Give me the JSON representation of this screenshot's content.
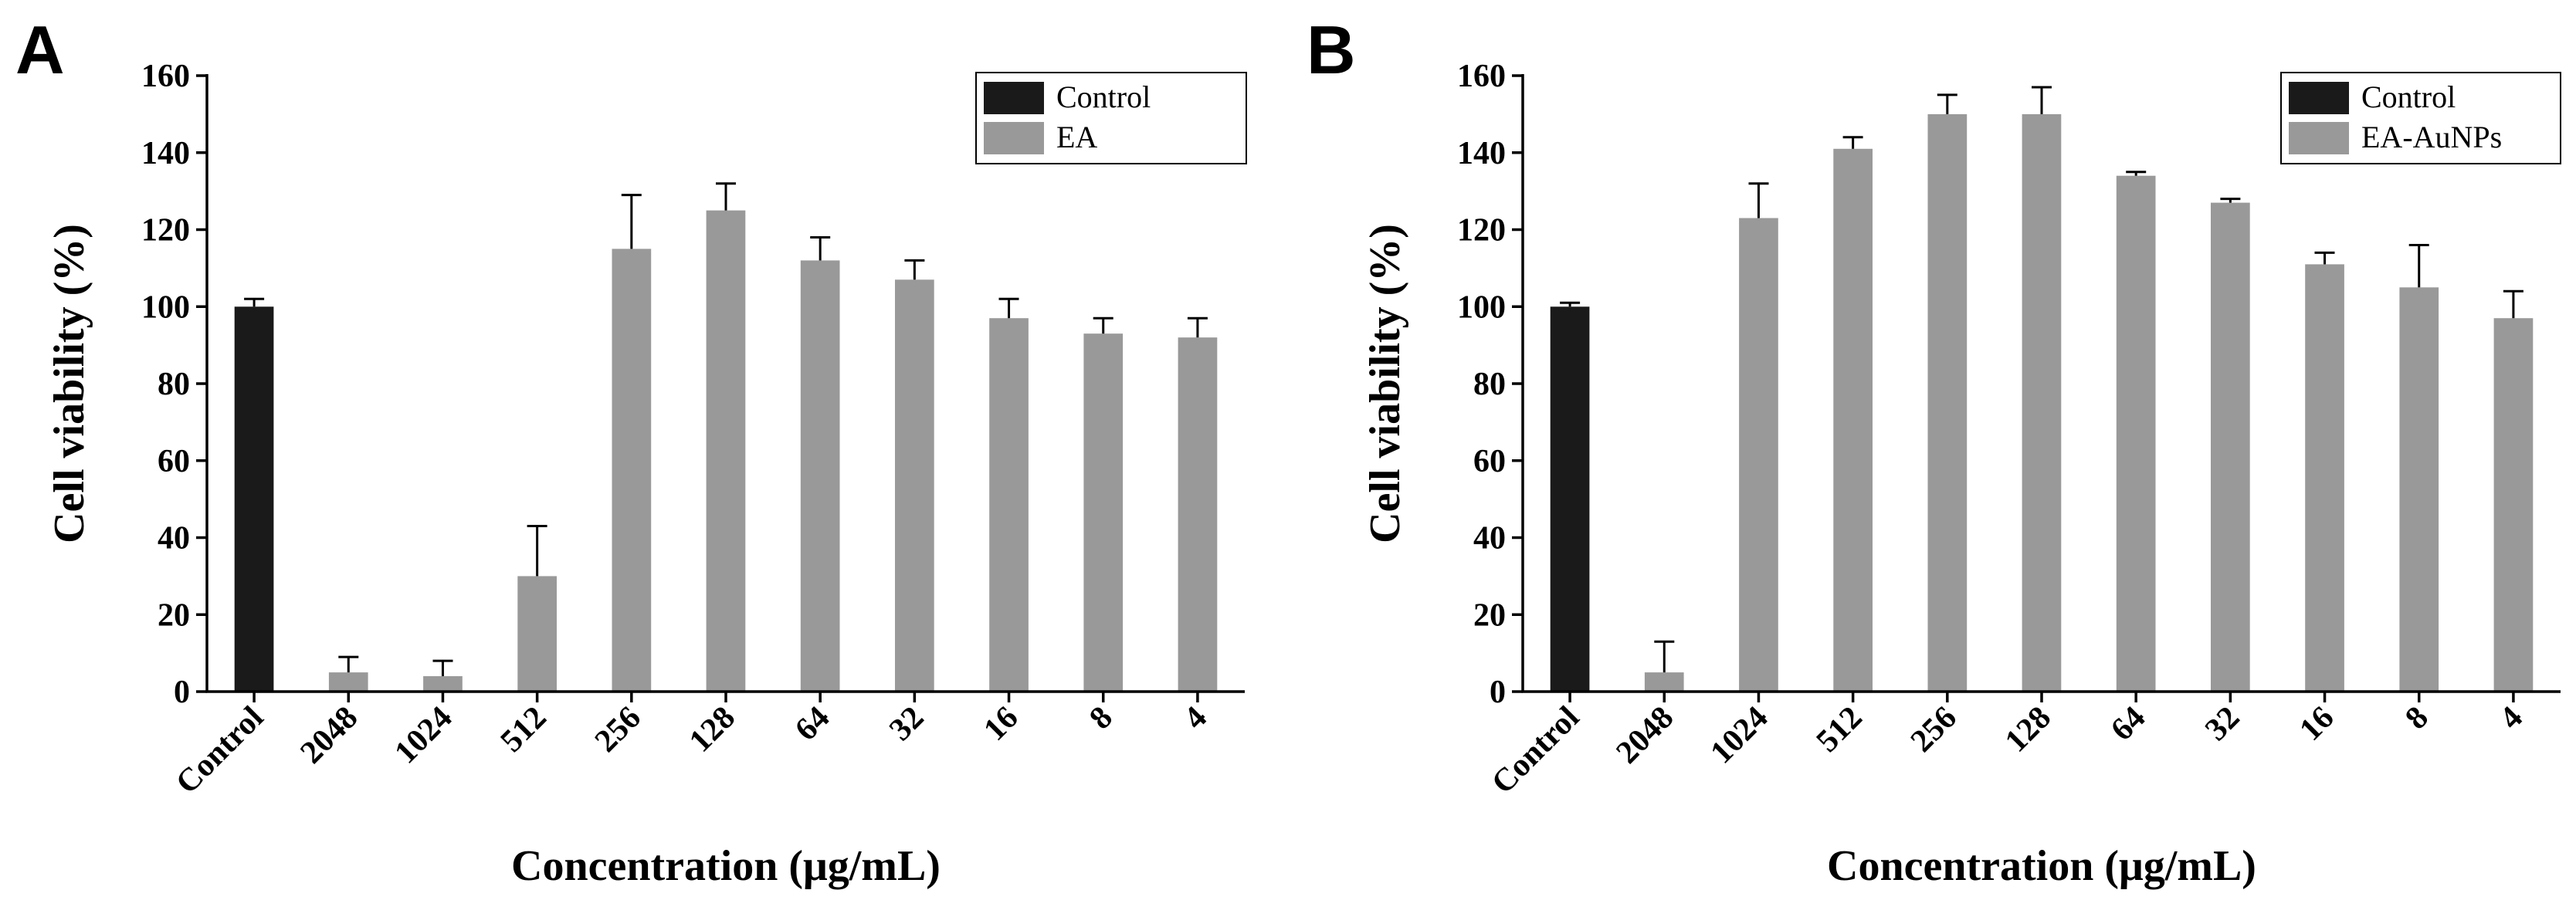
{
  "chart_data": [
    {
      "type": "bar",
      "panel": "A",
      "categories": [
        "Control",
        "2048",
        "1024",
        "512",
        "256",
        "128",
        "64",
        "32",
        "16",
        "8",
        "4"
      ],
      "series": [
        {
          "name": "Control",
          "color": "#1a1a1a",
          "values": [
            100,
            null,
            null,
            null,
            null,
            null,
            null,
            null,
            null,
            null,
            null
          ],
          "errors": [
            2,
            null,
            null,
            null,
            null,
            null,
            null,
            null,
            null,
            null,
            null
          ]
        },
        {
          "name": "EA",
          "color": "#999999",
          "values": [
            null,
            5,
            4,
            30,
            115,
            125,
            112,
            107,
            97,
            93,
            92
          ],
          "errors": [
            null,
            4,
            4,
            13,
            14,
            7,
            6,
            5,
            5,
            4,
            5
          ]
        }
      ],
      "xlabel": "Concentration (μg/mL)",
      "ylabel": "Cell viability (%)",
      "ylim": [
        0,
        160
      ],
      "yticks": [
        "0",
        "20",
        "40",
        "60",
        "80",
        "100",
        "120",
        "140",
        "160"
      ],
      "legend_position": "top-right",
      "grid": false
    },
    {
      "type": "bar",
      "panel": "B",
      "categories": [
        "Control",
        "2048",
        "1024",
        "512",
        "256",
        "128",
        "64",
        "32",
        "16",
        "8",
        "4"
      ],
      "series": [
        {
          "name": "Control",
          "color": "#1a1a1a",
          "values": [
            100,
            null,
            null,
            null,
            null,
            null,
            null,
            null,
            null,
            null,
            null
          ],
          "errors": [
            1,
            null,
            null,
            null,
            null,
            null,
            null,
            null,
            null,
            null,
            null
          ]
        },
        {
          "name": "EA-AuNPs",
          "color": "#999999",
          "values": [
            null,
            5,
            123,
            141,
            150,
            150,
            134,
            127,
            111,
            105,
            97
          ],
          "errors": [
            null,
            8,
            9,
            3,
            5,
            7,
            1,
            1,
            3,
            11,
            7
          ]
        }
      ],
      "xlabel": "Concentration (μg/mL)",
      "ylabel": "Cell viability (%)",
      "ylim": [
        0,
        160
      ],
      "yticks": [
        "0",
        "20",
        "40",
        "60",
        "80",
        "100",
        "120",
        "140",
        "160"
      ],
      "legend_position": "top-right",
      "grid": false
    }
  ]
}
